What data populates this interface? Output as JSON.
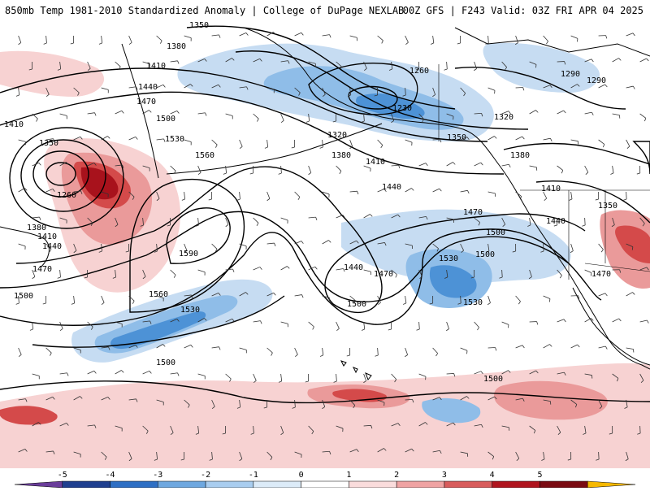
{
  "title": {
    "left": "850mb Temp 1981-2010 Standardized Anomaly | College of DuPage NEXLAB",
    "right": "00Z GFS | F243 Valid: 03Z FRI APR 04 2025"
  },
  "height_labels": [
    {
      "text": "1350"
    },
    {
      "text": "1380"
    },
    {
      "text": "1410"
    },
    {
      "text": "1440"
    },
    {
      "text": "1470"
    },
    {
      "text": "1500"
    },
    {
      "text": "1530"
    },
    {
      "text": "1410"
    },
    {
      "text": "1350"
    },
    {
      "text": "1260"
    },
    {
      "text": "1380"
    },
    {
      "text": "1410"
    },
    {
      "text": "1440"
    },
    {
      "text": "1470"
    },
    {
      "text": "1500"
    },
    {
      "text": "1560"
    },
    {
      "text": "1590"
    },
    {
      "text": "1560"
    },
    {
      "text": "1530"
    },
    {
      "text": "1500"
    },
    {
      "text": "1440"
    },
    {
      "text": "1470"
    },
    {
      "text": "1500"
    },
    {
      "text": "1500"
    },
    {
      "text": "1320"
    },
    {
      "text": "1380"
    },
    {
      "text": "1410"
    },
    {
      "text": "1440"
    },
    {
      "text": "1260"
    },
    {
      "text": "1230"
    },
    {
      "text": "1350"
    },
    {
      "text": "1290"
    },
    {
      "text": "1320"
    },
    {
      "text": "1380"
    },
    {
      "text": "1290"
    },
    {
      "text": "1410"
    },
    {
      "text": "1440"
    },
    {
      "text": "1350"
    },
    {
      "text": "1470"
    },
    {
      "text": "1470"
    },
    {
      "text": "1500"
    },
    {
      "text": "1530"
    },
    {
      "text": "1530"
    },
    {
      "text": "1500"
    }
  ],
  "colorbar": {
    "ticks": [
      "-5",
      "-4",
      "-3",
      "-2",
      "-1",
      "0",
      "1",
      "2",
      "3",
      "4",
      "5"
    ],
    "colors": [
      "#6a3d9a",
      "#1f3f8f",
      "#2e6fc4",
      "#6fa8e0",
      "#a9cdef",
      "#dcebf8",
      "#ffffff",
      "#fadcdc",
      "#f0a3a3",
      "#d85c5c",
      "#b0141e",
      "#7a0a12",
      "#f5b800"
    ]
  },
  "anomaly_colors": {
    "neg1": "#c6dcf2",
    "neg2": "#8fbde8",
    "neg3": "#4d92d6",
    "pos1": "#f7d2d2",
    "pos2": "#ea9a9a",
    "pos3": "#d44a4a",
    "pos4": "#a8121c"
  }
}
